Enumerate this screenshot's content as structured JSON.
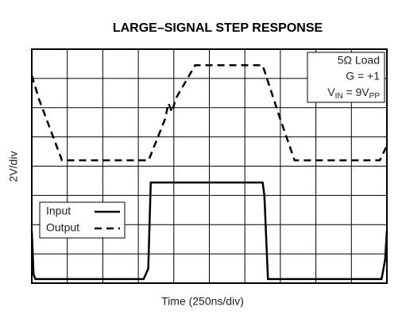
{
  "chart_data": {
    "type": "line",
    "title": "LARGE–SIGNAL STEP RESPONSE",
    "xlabel": "Time (250ns/div)",
    "ylabel": "2V/div",
    "xlim": [
      0,
      10
    ],
    "ylim": [
      0,
      8
    ],
    "xticks": [
      0,
      1,
      2,
      3,
      4,
      5,
      6,
      7,
      8,
      9,
      10
    ],
    "yticks": [
      0,
      1,
      2,
      3,
      4,
      5,
      6,
      7,
      8
    ],
    "grid": true,
    "legend": "lower left",
    "annotations": [
      "5Ω Load",
      "G = +1",
      [
        "V",
        "IN",
        " = 9V",
        "PP"
      ]
    ],
    "series": [
      {
        "name": "Input",
        "color": "#000000",
        "dash": "solid",
        "x": [
          0,
          0.05,
          0.1,
          3.15,
          3.28,
          3.35,
          6.5,
          6.55,
          6.65,
          9.85,
          9.95,
          10
        ],
        "values": [
          1.8,
          0.3,
          0.14,
          0.14,
          0.5,
          3.44,
          3.44,
          3.0,
          0.14,
          0.14,
          0.8,
          1.8
        ]
      },
      {
        "name": "Output",
        "color": "#000000",
        "dash": "dashed",
        "x": [
          0,
          0.2,
          0.85,
          3.29,
          3.75,
          3.85,
          3.95,
          4.05,
          4.6,
          6.5,
          7.0,
          7.4,
          9.8,
          10
        ],
        "values": [
          7.1,
          6.3,
          4.2,
          4.2,
          5.6,
          6.15,
          5.85,
          6.3,
          7.45,
          7.45,
          5.6,
          4.2,
          4.2,
          4.7
        ]
      }
    ]
  }
}
